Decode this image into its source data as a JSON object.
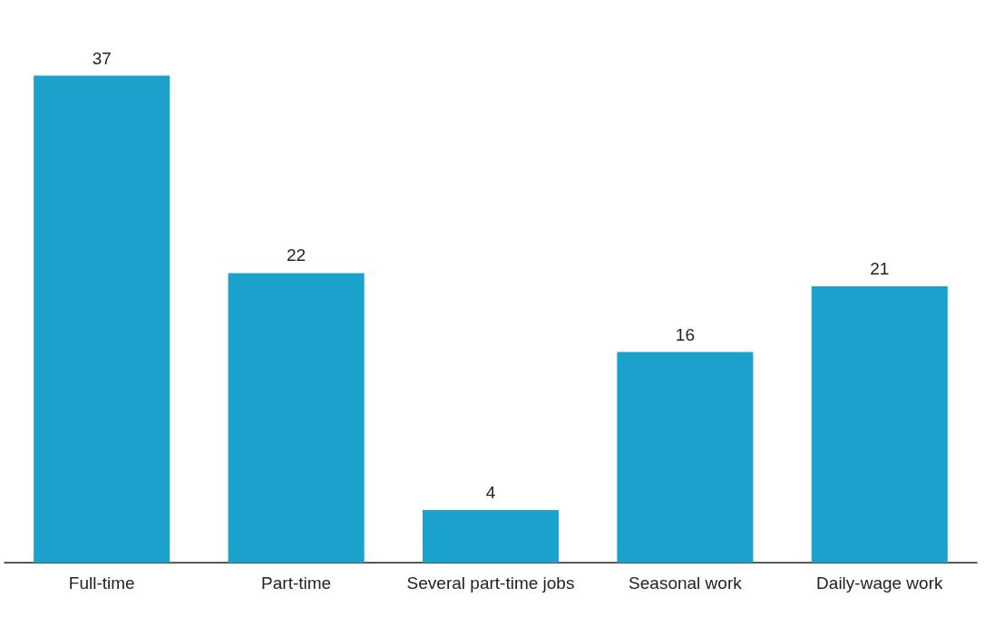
{
  "chart_data": {
    "type": "bar",
    "categories": [
      "Full-time",
      "Part-time",
      "Several part-time jobs",
      "Seasonal work",
      "Daily-wage work"
    ],
    "values": [
      37,
      22,
      4,
      16,
      21
    ],
    "color": "#1aa1cc",
    "data_labels": true
  }
}
